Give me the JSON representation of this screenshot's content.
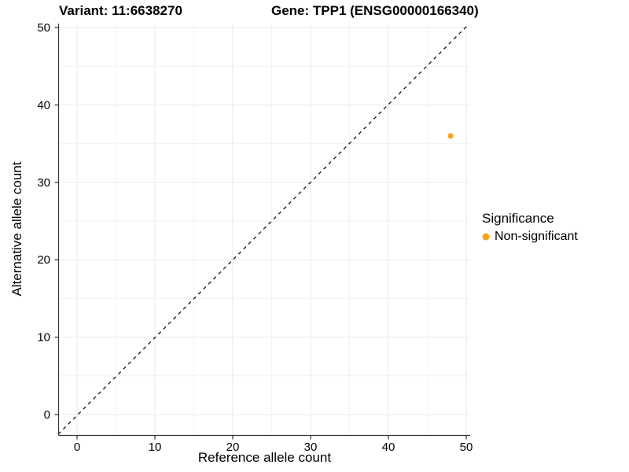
{
  "chart_data": {
    "type": "scatter",
    "title_left": "Variant: 11:6638270",
    "title_right": "Gene: TPP1 (ENSG00000166340)",
    "xlabel": "Reference allele count",
    "ylabel": "Alternative allele count",
    "x_ticks": [
      0,
      10,
      20,
      30,
      40,
      50
    ],
    "y_ticks": [
      0,
      10,
      20,
      30,
      40,
      50
    ],
    "x_tick_labels": [
      "0",
      "10",
      "20",
      "30",
      "40",
      "50"
    ],
    "y_tick_labels": [
      "0",
      "10",
      "20",
      "30",
      "40",
      "50"
    ],
    "xlim": [
      -2.5,
      52.5
    ],
    "ylim": [
      -2.5,
      52.5
    ],
    "grid": "major and minor gridlines, white background",
    "reference_line": {
      "type": "identity y=x",
      "style": "dashed",
      "color": "#000000"
    },
    "series": [
      {
        "name": "Non-significant",
        "color": "#F9A11B",
        "points": [
          {
            "x": 48,
            "y": 36
          }
        ]
      }
    ],
    "legend": {
      "title": "Significance",
      "position": "right",
      "entries": [
        {
          "label": "Non-significant",
          "color": "#F9A11B"
        }
      ]
    }
  },
  "colors": {
    "point": "#F9A11B",
    "grid_major": "#EAEAEA",
    "grid_minor": "#F3F3F3",
    "axis_line": "#333333",
    "dashed_line": "#000000",
    "background": "#FFFFFF"
  }
}
